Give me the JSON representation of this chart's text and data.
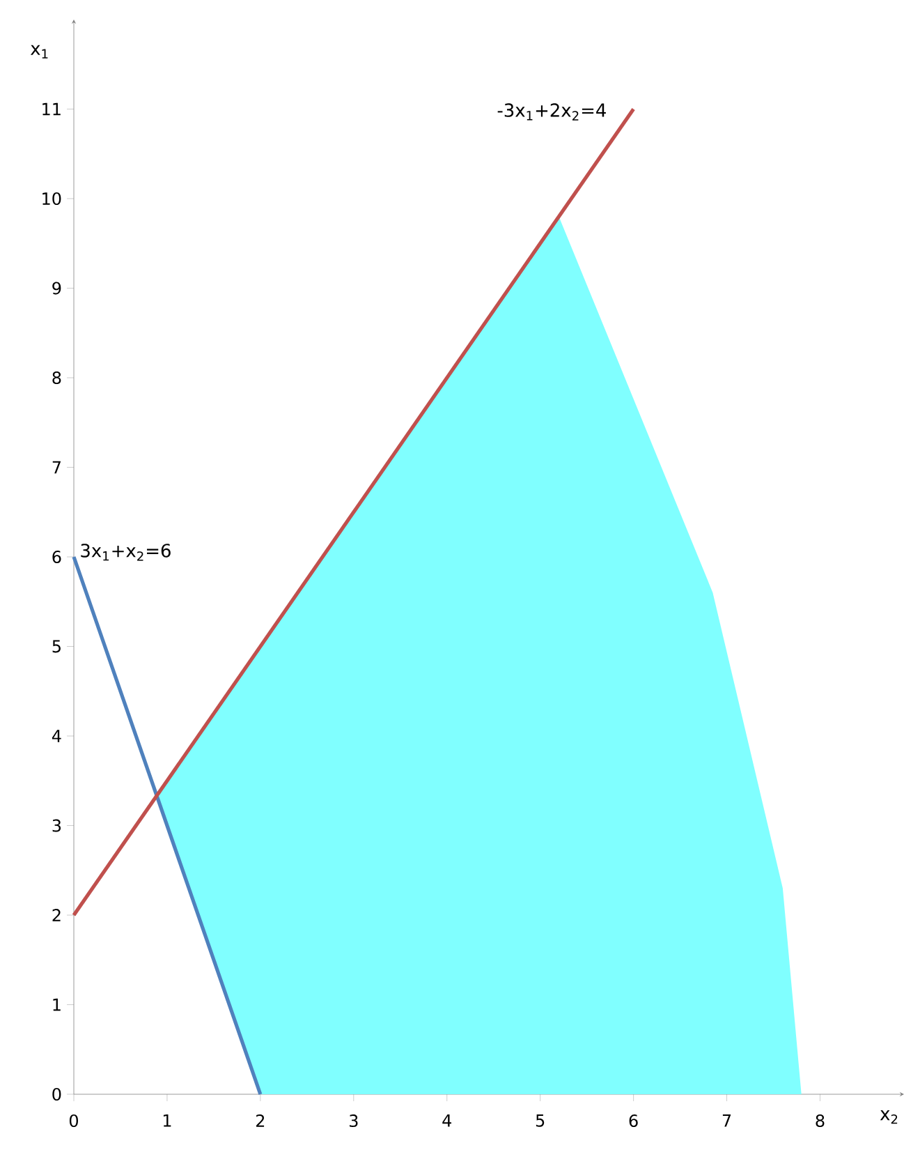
{
  "chart_data": {
    "type": "line",
    "xlabel": "x$_{2}$",
    "ylabel": "x$_{1}$",
    "xlim": [
      0,
      8.9
    ],
    "ylim": [
      0,
      12
    ],
    "xticks": [
      0,
      1,
      2,
      3,
      4,
      5,
      6,
      7,
      8
    ],
    "yticks": [
      0,
      1,
      2,
      3,
      4,
      5,
      6,
      7,
      8,
      9,
      10,
      11
    ],
    "marker": "none",
    "series": [
      {
        "type": "area",
        "color": "#80ffff",
        "x": [
          0.89,
          5.2,
          6.85,
          7.6,
          7.8,
          2
        ],
        "values": [
          3.33,
          9.8,
          5.6,
          2.3,
          0,
          0
        ]
      },
      {
        "name": "3x$_{1}$+x$_{2}$=6",
        "color": "#4f81bd",
        "x": [
          0,
          2
        ],
        "values": [
          6,
          0
        ]
      },
      {
        "name": "-3x$_{1}$+2x$_{2}$=4",
        "color": "#c0504d",
        "x": [
          0,
          6
        ],
        "values": [
          2,
          11
        ]
      }
    ]
  }
}
